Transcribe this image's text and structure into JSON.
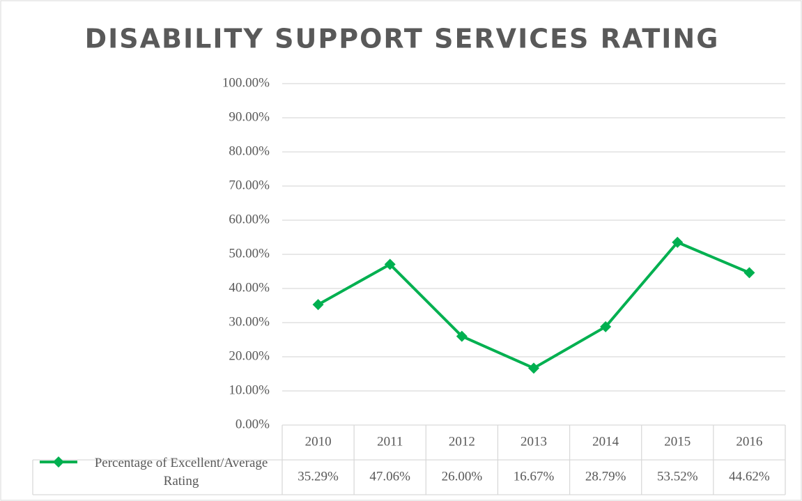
{
  "chart_data": {
    "type": "line",
    "title": "DISABILITY SUPPORT SERVICES RATING",
    "categories": [
      "2010",
      "2011",
      "2012",
      "2013",
      "2014",
      "2015",
      "2016"
    ],
    "series": [
      {
        "name": "Percentage of Excellent/Average Rating",
        "color": "#00b050",
        "values": [
          35.29,
          47.06,
          26.0,
          16.67,
          28.79,
          53.52,
          44.62
        ],
        "value_labels": [
          "35.29%",
          "47.06%",
          "26.00%",
          "16.67%",
          "28.79%",
          "53.52%",
          "44.62%"
        ]
      }
    ],
    "ylim": [
      0,
      100
    ],
    "yticks": [
      {
        "value": 0,
        "label": "0.00%"
      },
      {
        "value": 10,
        "label": "10.00%"
      },
      {
        "value": 20,
        "label": "20.00%"
      },
      {
        "value": 30,
        "label": "30.00%"
      },
      {
        "value": 40,
        "label": "40.00%"
      },
      {
        "value": 50,
        "label": "50.00%"
      },
      {
        "value": 60,
        "label": "60.00%"
      },
      {
        "value": 70,
        "label": "70.00%"
      },
      {
        "value": 80,
        "label": "80.00%"
      },
      {
        "value": 90,
        "label": "90.00%"
      },
      {
        "value": 100,
        "label": "100.00%"
      }
    ],
    "grid": true
  }
}
